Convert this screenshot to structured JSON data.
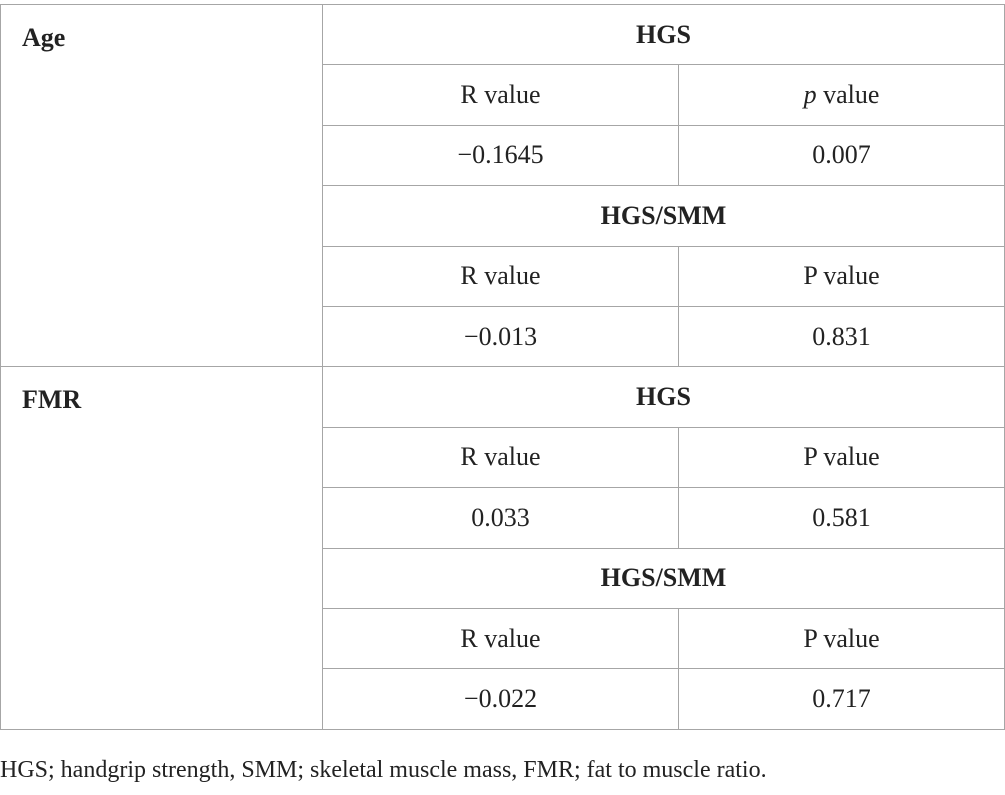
{
  "table": {
    "blocks": [
      {
        "variable": "Age",
        "groups": [
          {
            "name": "HGS",
            "r_header": "R value",
            "p_header_italic": "p",
            "p_header_rest": " value",
            "r_value": "−0.1645",
            "p_value": "0.007"
          },
          {
            "name": "HGS/SMM",
            "r_header": "R value",
            "p_header": "P value",
            "r_value": "−0.013",
            "p_value": "0.831"
          }
        ]
      },
      {
        "variable": "FMR",
        "groups": [
          {
            "name": "HGS",
            "r_header": "R value",
            "p_header": "P value",
            "r_value": "0.033",
            "p_value": "0.581"
          },
          {
            "name": "HGS/SMM",
            "r_header": "R value",
            "p_header": "P value",
            "r_value": "−0.022",
            "p_value": "0.717"
          }
        ]
      }
    ]
  },
  "footnote": "HGS; handgrip strength, SMM; skeletal muscle mass, FMR; fat to muscle ratio."
}
